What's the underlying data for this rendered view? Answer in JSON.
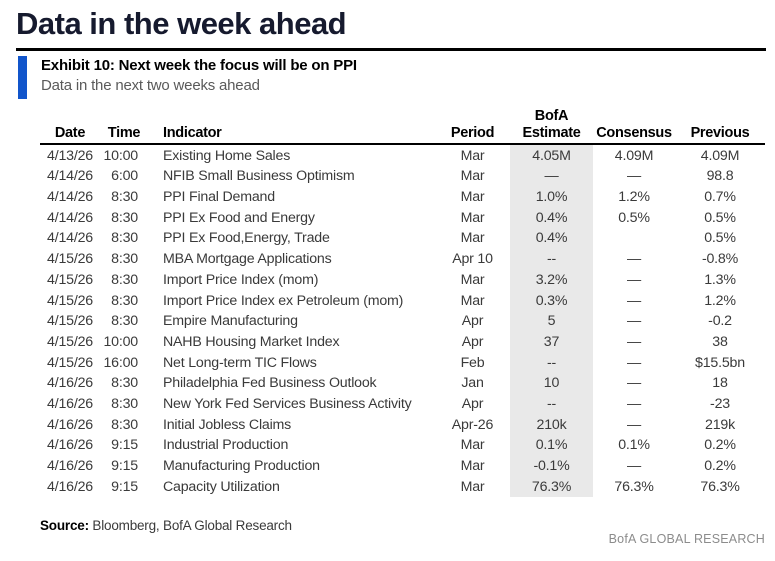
{
  "page_title": "Data in the week ahead",
  "exhibit": {
    "heading": "Exhibit 10: Next week the focus will be on PPI",
    "subtitle": "Data in the next two weeks ahead"
  },
  "table": {
    "header": {
      "date": "Date",
      "time": "Time",
      "indicator": "Indicator",
      "period": "Period",
      "estimate_line1": "BofA",
      "estimate_line2": "Estimate",
      "consensus": "Consensus",
      "previous": "Previous"
    },
    "rows": [
      {
        "date": "4/13/26",
        "time": "10:00",
        "indicator": "Existing Home Sales",
        "period": "Mar",
        "estimate": "4.05M",
        "consensus": "4.09M",
        "previous": "4.09M"
      },
      {
        "date": "4/14/26",
        "time": "6:00",
        "indicator": "NFIB Small Business Optimism",
        "period": "Mar",
        "estimate": "—",
        "consensus": "—",
        "previous": "98.8"
      },
      {
        "date": "4/14/26",
        "time": "8:30",
        "indicator": "PPI Final Demand",
        "period": "Mar",
        "estimate": "1.0%",
        "consensus": "1.2%",
        "previous": "0.7%"
      },
      {
        "date": "4/14/26",
        "time": "8:30",
        "indicator": "PPI Ex Food and Energy",
        "period": "Mar",
        "estimate": "0.4%",
        "consensus": "0.5%",
        "previous": "0.5%"
      },
      {
        "date": "4/14/26",
        "time": "8:30",
        "indicator": "PPI Ex Food,Energy, Trade",
        "period": "Mar",
        "estimate": "0.4%",
        "consensus": "",
        "previous": "0.5%"
      },
      {
        "date": "4/15/26",
        "time": "8:30",
        "indicator": "MBA Mortgage Applications",
        "period": "Apr 10",
        "estimate": "--",
        "consensus": "—",
        "previous": "-0.8%"
      },
      {
        "date": "4/15/26",
        "time": "8:30",
        "indicator": "Import Price Index (mom)",
        "period": "Mar",
        "estimate": "3.2%",
        "consensus": "—",
        "previous": "1.3%"
      },
      {
        "date": "4/15/26",
        "time": "8:30",
        "indicator": "Import Price Index ex Petroleum (mom)",
        "period": "Mar",
        "estimate": "0.3%",
        "consensus": "—",
        "previous": "1.2%"
      },
      {
        "date": "4/15/26",
        "time": "8:30",
        "indicator": "Empire Manufacturing",
        "period": "Apr",
        "estimate": "5",
        "consensus": "—",
        "previous": "-0.2"
      },
      {
        "date": "4/15/26",
        "time": "10:00",
        "indicator": "NAHB Housing Market Index",
        "period": "Apr",
        "estimate": "37",
        "consensus": "—",
        "previous": "38"
      },
      {
        "date": "4/15/26",
        "time": "16:00",
        "indicator": "Net Long-term TIC Flows",
        "period": "Feb",
        "estimate": "--",
        "consensus": "—",
        "previous": "$15.5bn"
      },
      {
        "date": "4/16/26",
        "time": "8:30",
        "indicator": "Philadelphia Fed Business Outlook",
        "period": "Jan",
        "estimate": "10",
        "consensus": "—",
        "previous": "18"
      },
      {
        "date": "4/16/26",
        "time": "8:30",
        "indicator": "New York Fed Services Business Activity",
        "period": "Apr",
        "estimate": "--",
        "consensus": "—",
        "previous": "-23"
      },
      {
        "date": "4/16/26",
        "time": "8:30",
        "indicator": "Initial Jobless Claims",
        "period": "Apr-26",
        "estimate": "210k",
        "consensus": "—",
        "previous": "219k"
      },
      {
        "date": "4/16/26",
        "time": "9:15",
        "indicator": "Industrial Production",
        "period": "Mar",
        "estimate": "0.1%",
        "consensus": "0.1%",
        "previous": "0.2%"
      },
      {
        "date": "4/16/26",
        "time": "9:15",
        "indicator": "Manufacturing Production",
        "period": "Mar",
        "estimate": "-0.1%",
        "consensus": "—",
        "previous": "0.2%"
      },
      {
        "date": "4/16/26",
        "time": "9:15",
        "indicator": "Capacity Utilization",
        "period": "Mar",
        "estimate": "76.3%",
        "consensus": "76.3%",
        "previous": "76.3%"
      }
    ]
  },
  "footer": {
    "source_label": "Source:",
    "source_text": " Bloomberg, BofA Global Research",
    "brand": "BofA GLOBAL RESEARCH"
  },
  "colors": {
    "title_navy": "#161a2e",
    "accent_blue": "#1155cb",
    "estimate_band": "#e9e9e9",
    "rule_black": "#000000",
    "subtitle_gray": "#5a5a5a",
    "brand_gray": "#8c8c8c"
  }
}
